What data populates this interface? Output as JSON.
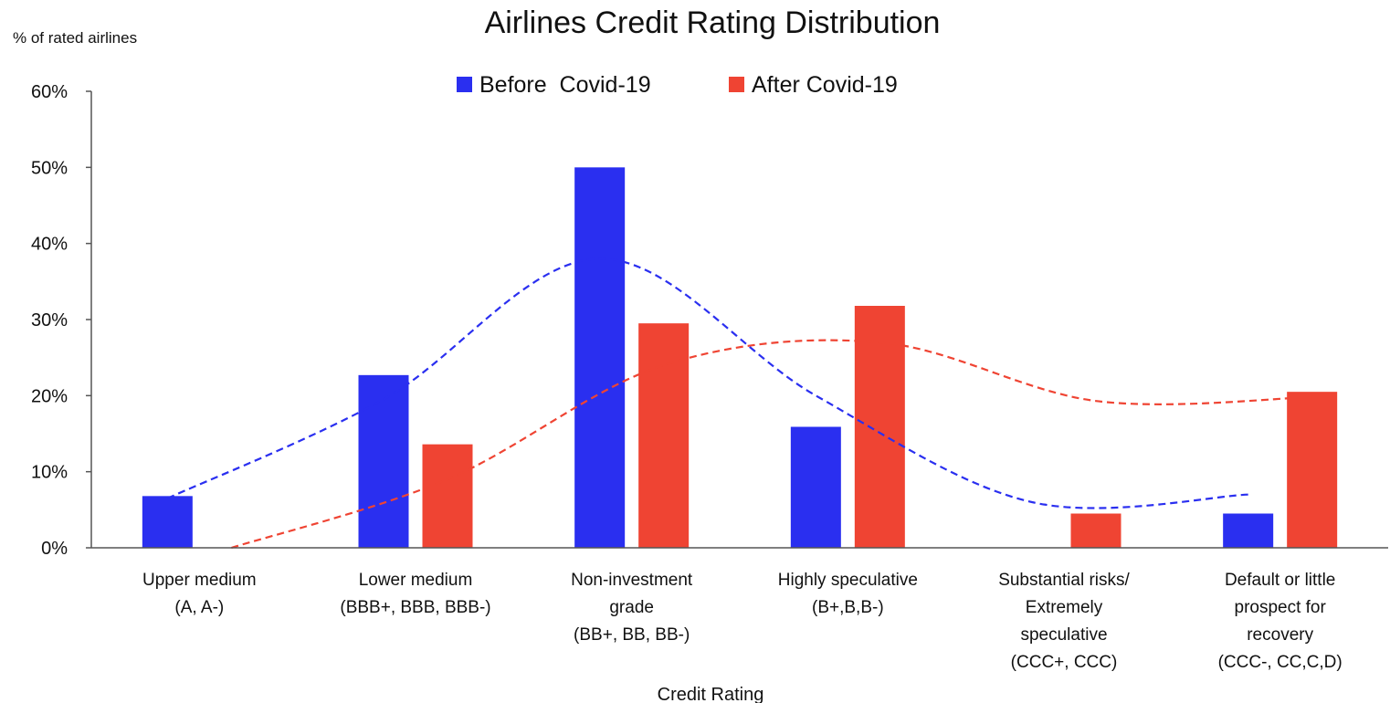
{
  "chart_data": {
    "type": "bar",
    "title": "Airlines Credit Rating Distribution",
    "ylabel": "% of rated airlines",
    "xlabel": "Credit Rating",
    "ylim": [
      0,
      60
    ],
    "yticks": [
      "0%",
      "10%",
      "20%",
      "30%",
      "40%",
      "50%",
      "60%"
    ],
    "ytick_values": [
      0,
      10,
      20,
      30,
      40,
      50,
      60
    ],
    "grid": false,
    "legend_position": "top-center",
    "categories": [
      [
        "Upper medium",
        "(A, A-)"
      ],
      [
        "Lower medium",
        "(BBB+, BBB, BBB-)"
      ],
      [
        "Non-investment",
        "grade",
        "(BB+, BB, BB-)"
      ],
      [
        "Highly speculative",
        "(B+,B,B-)"
      ],
      [
        "Substantial risks/",
        "Extremely",
        "speculative",
        "(CCC+, CCC)"
      ],
      [
        "Default or little",
        "prospect for",
        "recovery",
        "(CCC-, CC,C,D)"
      ]
    ],
    "series": [
      {
        "name": "Before  Covid-19",
        "color": "#2a2ff0",
        "values": [
          6.8,
          22.7,
          50,
          15.9,
          0,
          4.5
        ]
      },
      {
        "name": "After Covid-19",
        "color": "#ef4433",
        "values": [
          0,
          13.6,
          29.5,
          31.8,
          4.5,
          20.5
        ]
      }
    ],
    "trendlines": [
      {
        "series": "Before  Covid-19",
        "color": "#2a2ff0",
        "style": "dashed",
        "values": [
          6.5,
          19.5,
          38,
          20,
          6,
          7
        ]
      },
      {
        "series": "After Covid-19",
        "color": "#ef4433",
        "style": "dashed",
        "values": [
          0,
          9,
          24,
          27,
          19.3,
          19.8
        ]
      }
    ]
  }
}
